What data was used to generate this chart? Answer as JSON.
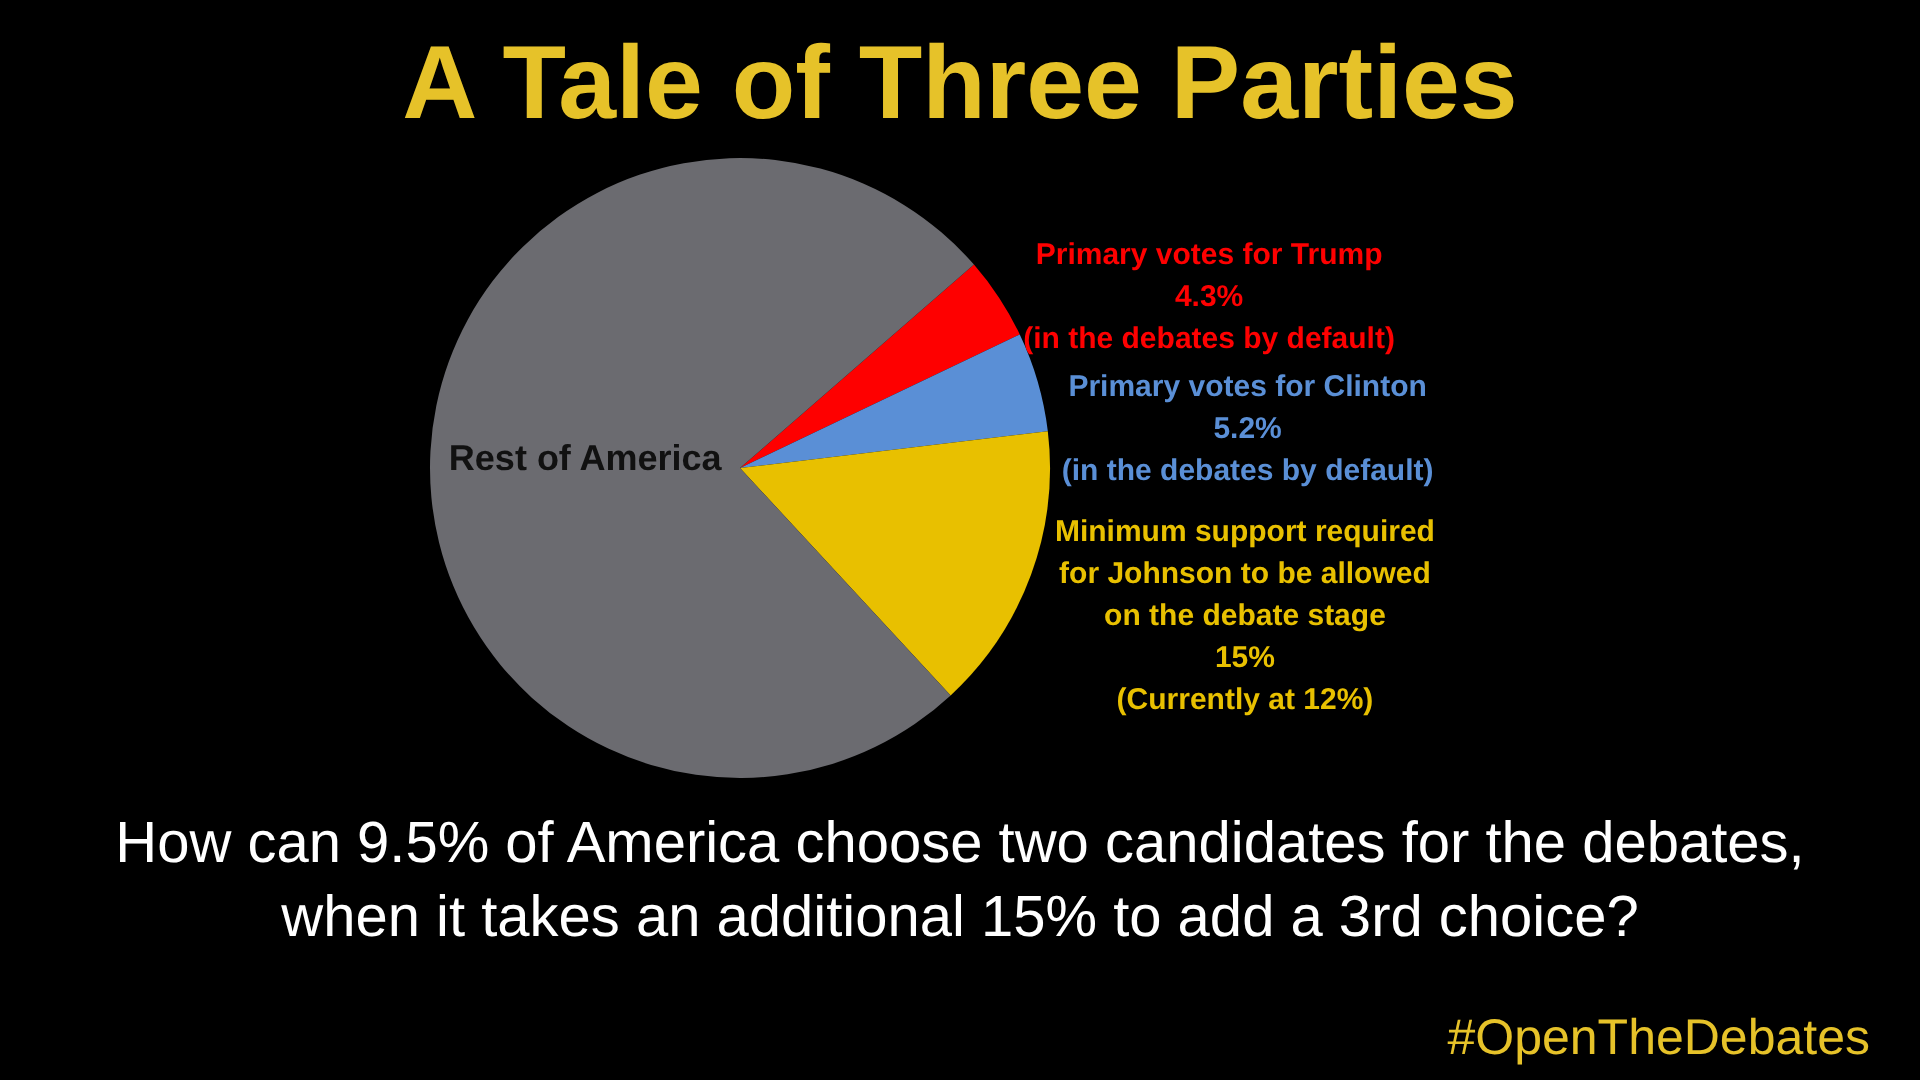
{
  "chart_data": {
    "type": "pie",
    "title": "A Tale of Three Parties",
    "subtitle": "How can 9.5% of America choose two candidates for the debates, when it takes an additional 15% to add a 3rd choice?",
    "categories": [
      "Primary votes for Trump",
      "Primary votes for Clinton",
      "Minimum support required for Johnson to be allowed on the debate stage",
      "Rest of America"
    ],
    "values": [
      4.3,
      5.2,
      15,
      75.5
    ],
    "colors": [
      "#fe0000",
      "#5a8fd6",
      "#e8c000",
      "#6b6b70"
    ],
    "value_labels": [
      "4.3%",
      "5.2%",
      "15%",
      null
    ],
    "annotations": [
      "(in the debates by default)",
      "(in the debates by default)",
      "(Currently at 12%)",
      "#OpenTheDebates"
    ]
  }
}
